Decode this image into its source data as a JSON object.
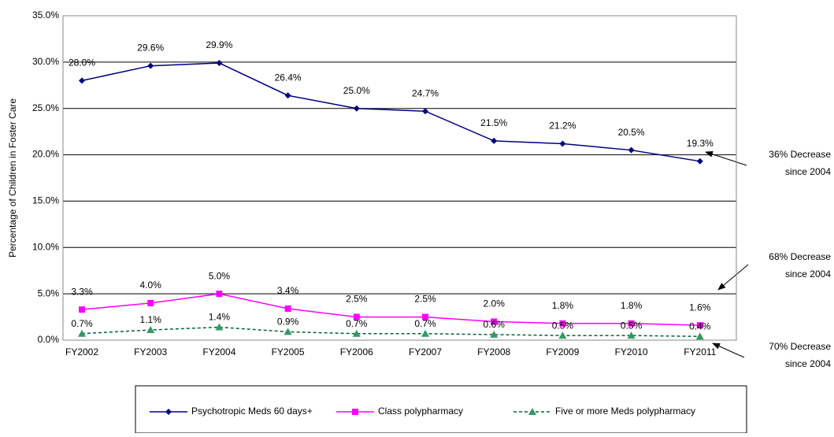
{
  "chart_data": {
    "type": "line",
    "y_label": "Percentage of Children in Foster Care",
    "categories": [
      "FY2002",
      "FY2003",
      "FY2004",
      "FY2005",
      "FY2006",
      "FY2007",
      "FY2008",
      "FY2009",
      "FY2010",
      "FY2011"
    ],
    "ylim": [
      0,
      35
    ],
    "yticks": [
      {
        "value": 0,
        "label": "0.0%"
      },
      {
        "value": 5,
        "label": "5.0%"
      },
      {
        "value": 10,
        "label": "10.0%"
      },
      {
        "value": 15,
        "label": "15.0%"
      },
      {
        "value": 20,
        "label": "20.0%"
      },
      {
        "value": 25,
        "label": "25.0%"
      },
      {
        "value": 30,
        "label": "30.0%"
      },
      {
        "value": 35,
        "label": "35.0%"
      }
    ],
    "grid": true,
    "series": [
      {
        "name": "Psychotropic Meds 60 days+",
        "color": "#000080",
        "marker": "diamond",
        "dashed": false,
        "values": [
          28.0,
          29.6,
          29.9,
          26.4,
          25.0,
          24.7,
          21.5,
          21.2,
          20.5,
          19.3
        ],
        "value_labels": [
          "28.0%",
          "29.6%",
          "29.9%",
          "26.4%",
          "25.0%",
          "24.7%",
          "21.5%",
          "21.2%",
          "20.5%",
          "19.3%"
        ]
      },
      {
        "name": "Class polypharmacy",
        "color": "#ff00ff",
        "marker": "square",
        "dashed": false,
        "values": [
          3.3,
          4.0,
          5.0,
          3.4,
          2.5,
          2.5,
          2.0,
          1.8,
          1.8,
          1.6
        ],
        "value_labels": [
          "3.3%",
          "4.0%",
          "5.0%",
          "3.4%",
          "2.5%",
          "2.5%",
          "2.0%",
          "1.8%",
          "1.8%",
          "1.6%"
        ]
      },
      {
        "name": "Five or more Meds polypharmacy",
        "color": "#339966",
        "marker": "triangle",
        "dashed": true,
        "values": [
          0.7,
          1.1,
          1.4,
          0.9,
          0.7,
          0.7,
          0.6,
          0.5,
          0.5,
          0.4
        ],
        "value_labels": [
          "0.7%",
          "1.1%",
          "1.4%",
          "0.9%",
          "0.7%",
          "0.7%",
          "0.6%",
          "0.5%",
          "0.5%",
          "0.4%"
        ]
      }
    ],
    "annotations": [
      {
        "lines": [
          "36% Decrease",
          "since 2004"
        ]
      },
      {
        "lines": [
          "68% Decrease",
          "since 2004"
        ]
      },
      {
        "lines": [
          "70% Decrease",
          "since 2004"
        ]
      }
    ]
  }
}
